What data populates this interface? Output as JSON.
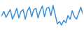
{
  "chart_data": {
    "type": "line",
    "color": "#3a8fd6",
    "x": [
      1,
      2,
      3,
      4,
      5,
      6,
      7,
      8,
      9,
      10,
      11,
      12,
      13,
      14,
      15,
      16,
      17,
      18,
      19,
      20,
      21,
      22,
      23,
      24,
      25,
      26,
      27,
      28,
      29,
      30,
      31,
      32,
      33,
      34,
      35,
      36,
      37,
      38,
      39
    ],
    "values": [
      23,
      30,
      20,
      27,
      33,
      17,
      25,
      35,
      19,
      30,
      33,
      17,
      31,
      37,
      21,
      33,
      35,
      19,
      31,
      39,
      21,
      35,
      37,
      23,
      40,
      25,
      9,
      13,
      7,
      15,
      11,
      23,
      17,
      31,
      21,
      17,
      27,
      37,
      25
    ],
    "xlim": [
      1,
      39
    ],
    "ylim": [
      0,
      45
    ],
    "tick_labels": false,
    "grid": false
  }
}
